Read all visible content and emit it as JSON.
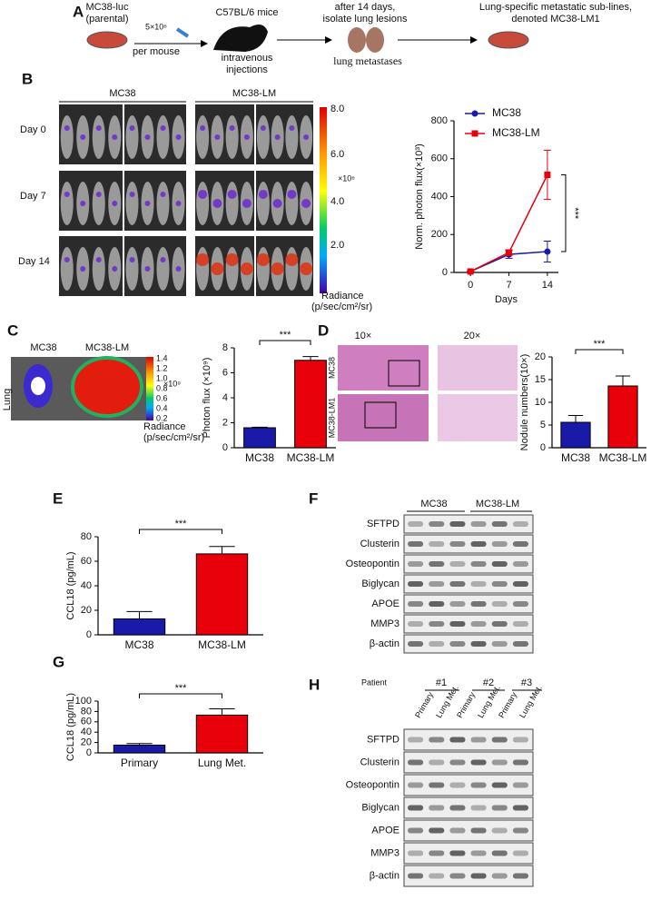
{
  "panel_labels": [
    "A",
    "B",
    "C",
    "D",
    "E",
    "F",
    "G",
    "H"
  ],
  "panel_a": {
    "dish1": [
      "MC38-luc",
      "(parental)"
    ],
    "dose": [
      "5×10⁶",
      "per mouse"
    ],
    "mice": "C57BL/6 mice",
    "route": [
      "intravenous",
      "injections"
    ],
    "after": [
      "after 14 days,",
      "isolate lung lesions"
    ],
    "lung": "lung metastases",
    "result": [
      "Lung-specific metastatic sub-lines,",
      "denoted MC38-LM1"
    ]
  },
  "panel_b_images": {
    "groups": [
      "MC38",
      "MC38-LM"
    ],
    "days": [
      "Day  0",
      "Day  7",
      "Day  14"
    ],
    "colorbar": [
      "8.0",
      "6.0",
      "4.0",
      "2.0"
    ],
    "exponent": "×10⁶",
    "radiance": [
      "Radiance",
      "(p/sec/cm²/sr)"
    ]
  },
  "panel_c_images": {
    "groups": [
      "MC38",
      "MC38-LM"
    ],
    "organ": "Lung",
    "colorbar": [
      "1.4",
      "1.2",
      "1.0",
      "0.8",
      "0.6",
      "0.4",
      "0.2"
    ],
    "exponent": "×10⁹",
    "radiance": [
      "Radiance",
      "(p/sec/cm²/sr)"
    ]
  },
  "panel_d_images": {
    "magnifications": [
      "10×",
      "20×"
    ],
    "rows": [
      "MC38",
      "MC38-LM1"
    ]
  },
  "blot_f": {
    "groups": [
      "MC38",
      "MC38-LM"
    ],
    "proteins": [
      "SFTPD",
      "Clusterin",
      "Osteopontin",
      "Biglycan",
      "APOE",
      "MMP3",
      "β-actin"
    ]
  },
  "blot_h": {
    "patient": "Patient",
    "patients": [
      "#1",
      "#2",
      "#3"
    ],
    "lanes": [
      "Primary",
      "Lung Met.",
      "Primary",
      "Lung Met.",
      "Primary",
      "Lung Met."
    ],
    "proteins": [
      "SFTPD",
      "Clusterin",
      "Osteopontin",
      "Biglycan",
      "APOE",
      "MMP3",
      "β-actin"
    ]
  },
  "chart_data": [
    {
      "type": "line",
      "ylabel": "Norm. photon flux(×10³)",
      "xlabel": "Days",
      "x": [
        0,
        7,
        14
      ],
      "xlim": [
        -3,
        16
      ],
      "xticks": [
        0,
        7,
        14
      ],
      "ylim": [
        0,
        800
      ],
      "yticks": [
        0,
        200,
        400,
        600,
        800
      ],
      "annotation": "***",
      "series": [
        {
          "name": "MC38",
          "color": "#1a1aa8",
          "marker": "circle",
          "values": [
            5,
            95,
            110
          ],
          "errors": [
            2,
            20,
            55
          ]
        },
        {
          "name": "MC38-LM",
          "color": "#e8000b",
          "marker": "square",
          "values": [
            5,
            105,
            515
          ],
          "errors": [
            2,
            15,
            130
          ]
        }
      ]
    },
    {
      "type": "bar",
      "ylabel": "Photon flux (×10⁹)",
      "categories": [
        "MC38",
        "MC38-LM"
      ],
      "values": [
        1.6,
        7.0
      ],
      "errors": [
        0.05,
        0.3
      ],
      "colors": [
        "#1a1aa8",
        "#e8000b"
      ],
      "ylim": [
        0,
        8
      ],
      "yticks": [
        0,
        2,
        4,
        6,
        8
      ],
      "annotation": "***"
    },
    {
      "type": "bar",
      "ylabel": "Nodule numbers(10×)",
      "categories": [
        "MC38",
        "MC38-LM"
      ],
      "values": [
        5.6,
        13.6
      ],
      "errors": [
        1.5,
        2.2
      ],
      "colors": [
        "#1a1aa8",
        "#e8000b"
      ],
      "ylim": [
        0,
        20
      ],
      "yticks": [
        0,
        5,
        10,
        15,
        20
      ],
      "annotation": "***"
    },
    {
      "type": "bar",
      "ylabel": "CCL18 (pg/mL)",
      "categories": [
        "MC38",
        "MC38-LM"
      ],
      "values": [
        13,
        66
      ],
      "errors": [
        6,
        6
      ],
      "colors": [
        "#1a1aa8",
        "#e8000b"
      ],
      "ylim": [
        0,
        80
      ],
      "yticks": [
        0,
        20,
        40,
        60,
        80
      ],
      "annotation": "***"
    },
    {
      "type": "bar",
      "ylabel": "CCL18 (pg/mL)",
      "categories": [
        "Primary",
        "Lung Met."
      ],
      "values": [
        15,
        73
      ],
      "errors": [
        3,
        12
      ],
      "colors": [
        "#1a1aa8",
        "#e8000b"
      ],
      "ylim": [
        0,
        100
      ],
      "yticks": [
        0,
        20,
        40,
        60,
        80,
        100
      ],
      "annotation": "***"
    }
  ]
}
